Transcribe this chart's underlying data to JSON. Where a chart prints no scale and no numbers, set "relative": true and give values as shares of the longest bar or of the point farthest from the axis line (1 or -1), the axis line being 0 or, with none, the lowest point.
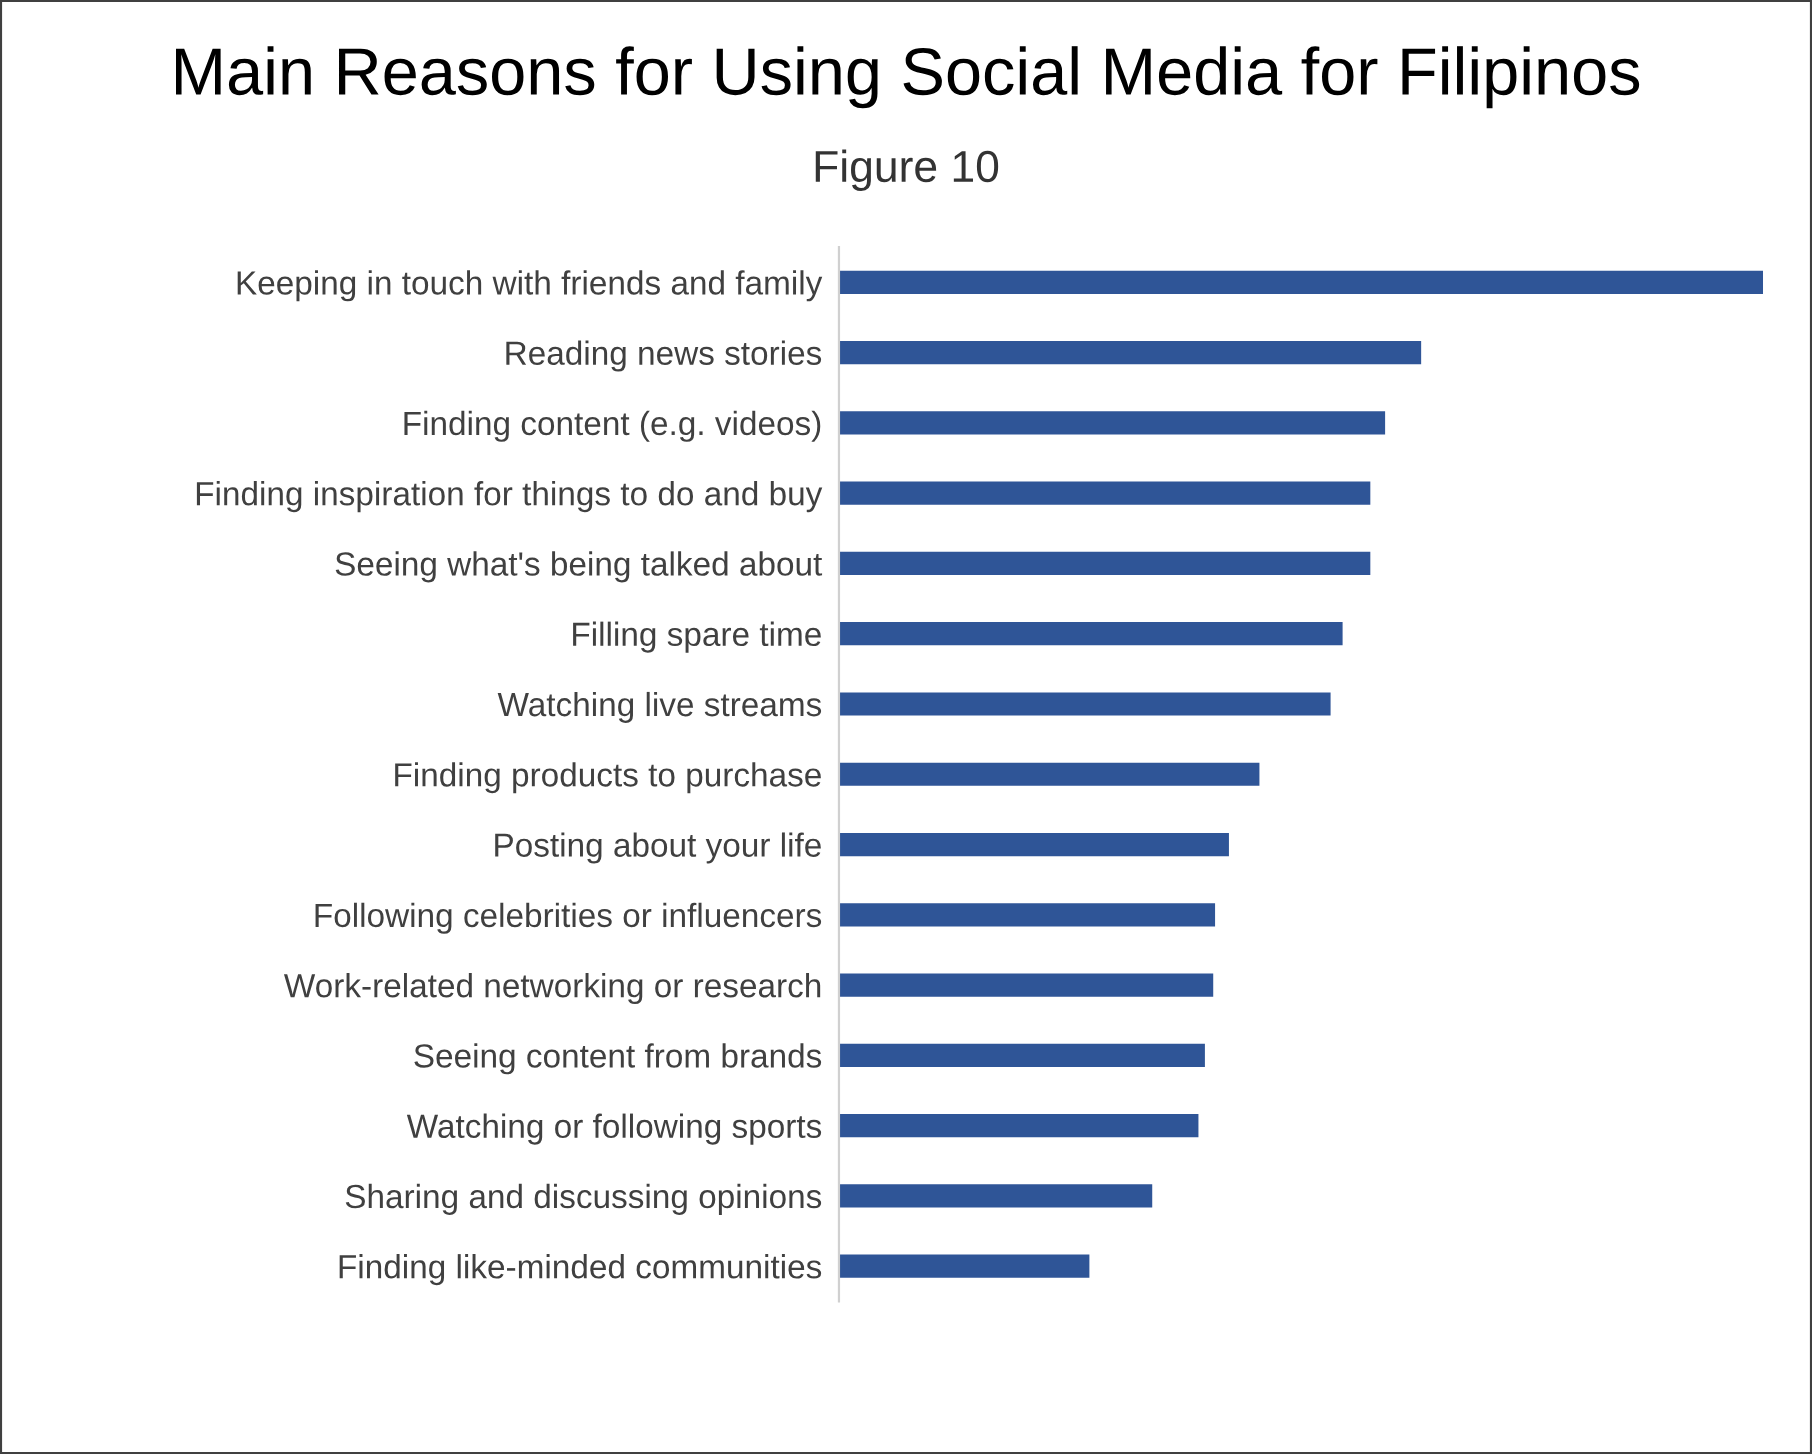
{
  "chart_data": {
    "type": "bar",
    "title": "Main Reasons for Using Social Media for Filipinos",
    "subtitle": "Figure 10",
    "orientation": "horizontal",
    "relative": true,
    "color": "#2f5597",
    "grid": false,
    "legend": false,
    "categories": [
      "Keeping in touch with friends and family",
      "Reading news stories",
      "Finding content (e.g. videos)",
      "Finding inspiration for things to do and buy",
      "Seeing what's being talked about",
      "Filling spare time",
      "Watching live streams",
      "Finding products to purchase",
      "Posting about your life",
      "Following celebrities or influencers",
      "Work-related networking or research",
      "Seeing content from brands",
      "Watching or following sports",
      "Sharing and discussing opinions",
      "Finding like-minded communities"
    ],
    "values": [
      1,
      0.63,
      0.591,
      0.575,
      0.575,
      0.545,
      0.532,
      0.455,
      0.422,
      0.407,
      0.405,
      0.396,
      0.389,
      0.339,
      0.271
    ]
  }
}
